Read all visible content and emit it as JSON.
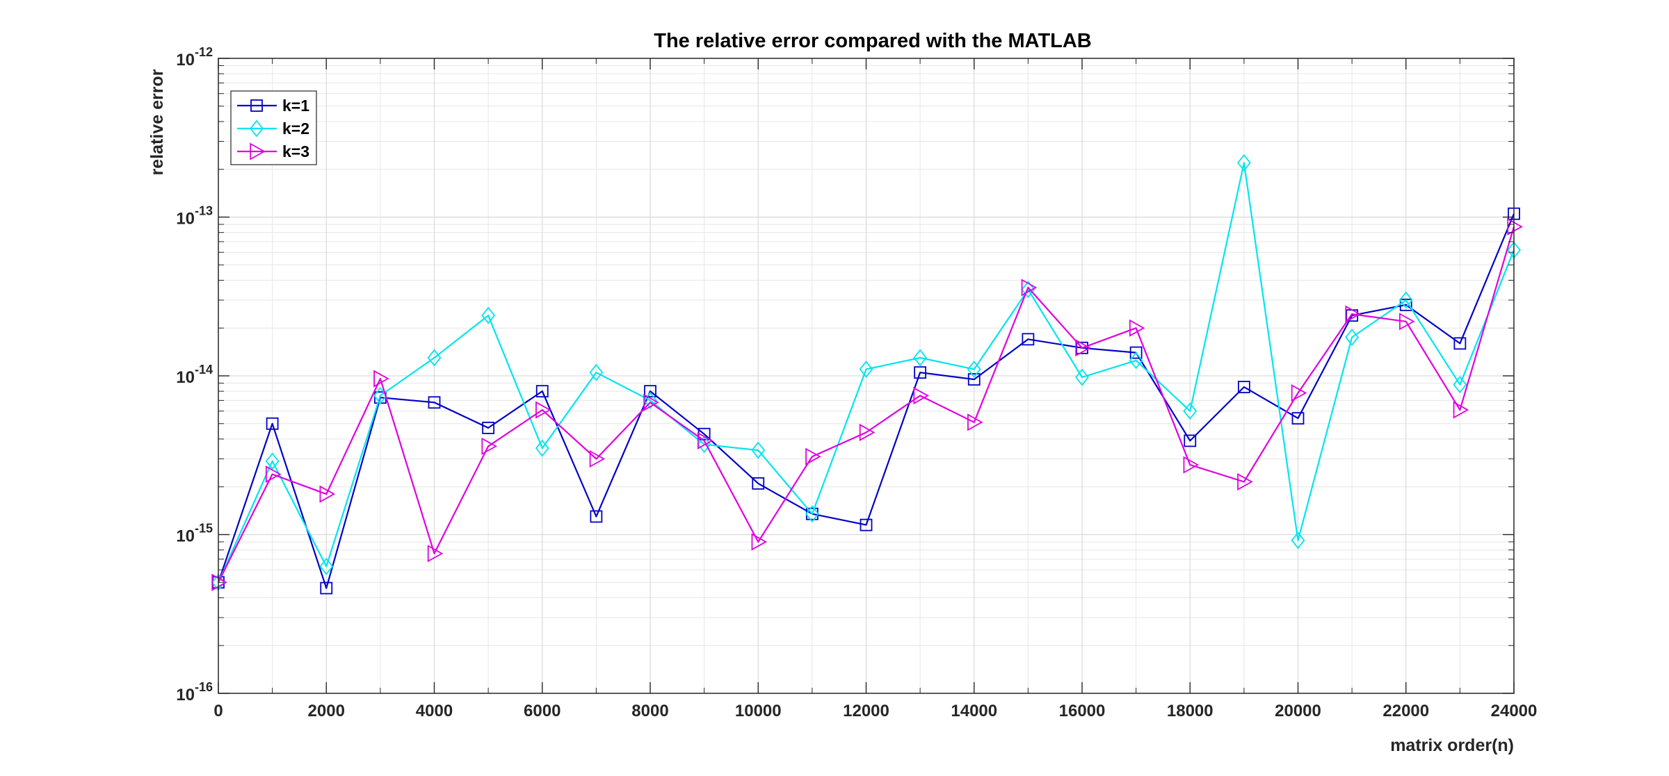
{
  "chart_data": {
    "type": "line",
    "title": "The relative error compared with the MATLAB",
    "xlabel": "matrix order(n)",
    "ylabel": "relative error",
    "x": [
      0,
      1000,
      2000,
      3000,
      4000,
      5000,
      6000,
      7000,
      8000,
      9000,
      10000,
      11000,
      12000,
      13000,
      14000,
      15000,
      16000,
      17000,
      18000,
      19000,
      20000,
      21000,
      22000,
      23000,
      24000
    ],
    "xlim": [
      0,
      24000
    ],
    "xticks": [
      0,
      2000,
      4000,
      6000,
      8000,
      10000,
      12000,
      14000,
      16000,
      18000,
      20000,
      22000,
      24000
    ],
    "xtick_labels": [
      "0",
      "2000",
      "4000",
      "6000",
      "8000",
      "10000",
      "12000",
      "14000",
      "16000",
      "18000",
      "20000",
      "22000",
      "24000"
    ],
    "yscale": "log",
    "ylim": [
      1e-16,
      1e-12
    ],
    "ytick_base": "10",
    "ytick_exponents": [
      "-16",
      "-15",
      "-14",
      "-13",
      "-12"
    ],
    "grid": true,
    "legend_position": "top-left",
    "series": [
      {
        "name": "k=1",
        "color": "#0000c8",
        "marker": "square",
        "values": [
          5e-16,
          5e-15,
          4.6e-16,
          7.3e-15,
          6.8e-15,
          4.7e-15,
          8e-15,
          1.3e-15,
          8e-15,
          4.3e-15,
          2.1e-15,
          1.35e-15,
          1.15e-15,
          1.05e-14,
          9.5e-15,
          1.7e-14,
          1.5e-14,
          1.4e-14,
          3.9e-15,
          8.5e-15,
          5.4e-15,
          2.4e-14,
          2.8e-14,
          1.6e-14,
          1.05e-13
        ]
      },
      {
        "name": "k=2",
        "color": "#00e5ee",
        "marker": "diamond",
        "values": [
          5e-16,
          2.9e-15,
          6.3e-16,
          7.5e-15,
          1.3e-14,
          2.4e-14,
          3.5e-15,
          1.05e-14,
          7e-15,
          3.7e-15,
          3.4e-15,
          1.35e-15,
          1.1e-14,
          1.3e-14,
          1.1e-14,
          3.5e-14,
          9.8e-15,
          1.25e-14,
          6e-15,
          2.2e-13,
          9.2e-16,
          1.75e-14,
          3e-14,
          8.8e-15,
          6.2e-14
        ]
      },
      {
        "name": "k=3",
        "color": "#e000e0",
        "marker": "triangle-right",
        "values": [
          5e-16,
          2.4e-15,
          1.8e-15,
          9.6e-15,
          7.6e-16,
          3.6e-15,
          6.1e-15,
          3e-15,
          6.8e-15,
          3.9e-15,
          9e-16,
          3.1e-15,
          4.4e-15,
          7.5e-15,
          5.1e-15,
          3.6e-14,
          1.5e-14,
          2e-14,
          2.75e-15,
          2.15e-15,
          7.8e-15,
          2.45e-14,
          2.2e-14,
          6.1e-15,
          8.7e-14
        ]
      }
    ]
  }
}
